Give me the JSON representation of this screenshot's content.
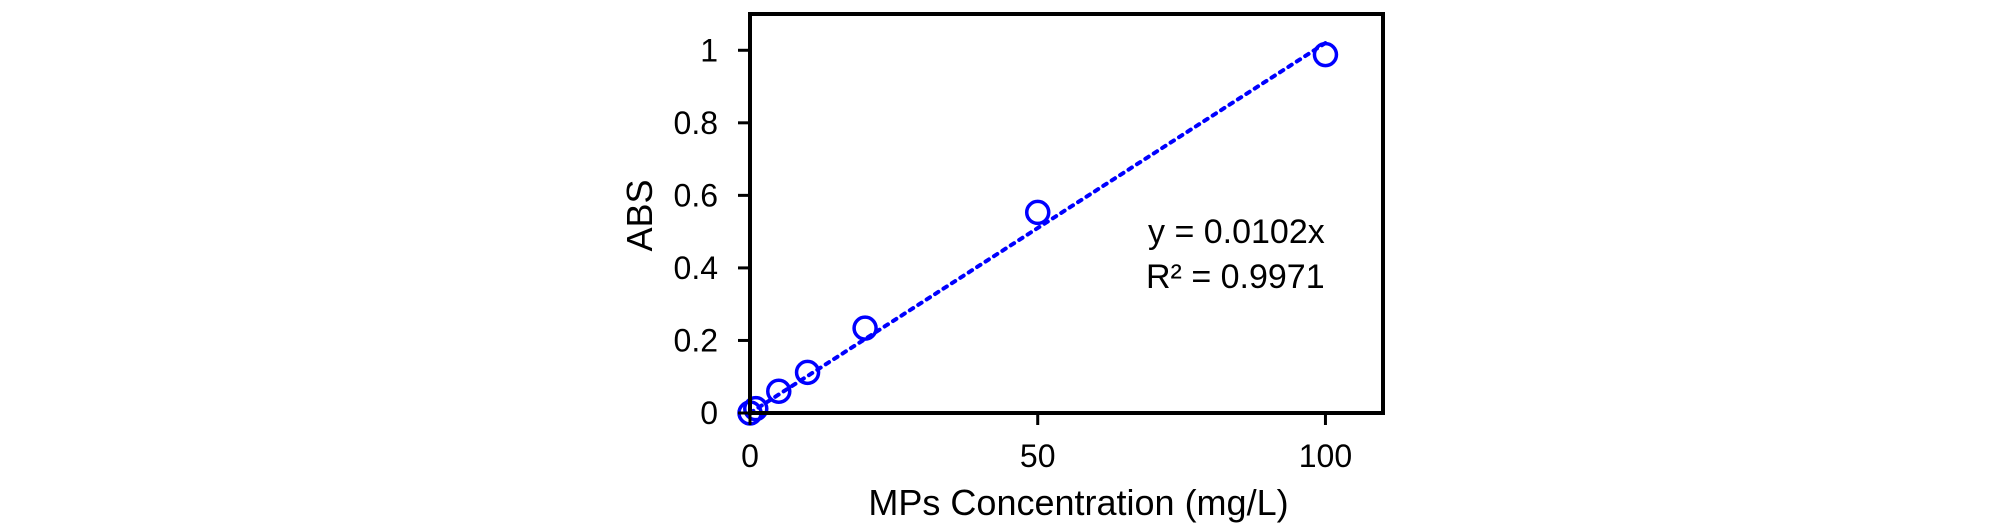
{
  "chart_data": {
    "type": "scatter",
    "title": "",
    "xlabel": "MPs Concentration (mg/L)",
    "ylabel": "ABS",
    "xlim": [
      0,
      110
    ],
    "ylim": [
      0,
      1.1
    ],
    "x_ticks": [
      0,
      50,
      100
    ],
    "x_tick_labels": [
      "0",
      "50",
      "100"
    ],
    "y_ticks": [
      0,
      0.2,
      0.4,
      0.6,
      0.8,
      1
    ],
    "y_tick_labels": [
      "0",
      "0.2",
      "0.4",
      "0.6",
      "0.8",
      "1"
    ],
    "grid": false,
    "marker_color": "#0000ff",
    "series": [
      {
        "x": [
          0,
          1,
          5,
          10,
          20,
          50,
          100
        ],
        "y": [
          0.0,
          0.012,
          0.06,
          0.112,
          0.234,
          0.553,
          0.988
        ]
      }
    ],
    "trendline": {
      "style": "dotted",
      "slope": 0.0102,
      "intercept": 0,
      "x_range": [
        0,
        100
      ],
      "equation_label": "y = 0.0102x",
      "r2_label": "R² = 0.9971"
    }
  }
}
